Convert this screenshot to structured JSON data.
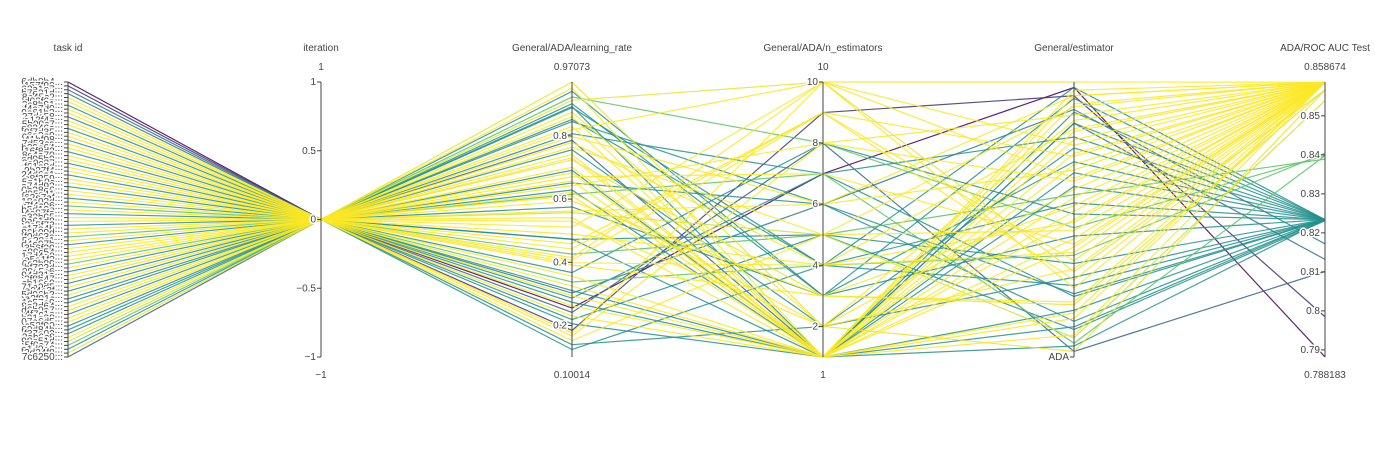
{
  "chart_data": {
    "type": "parallel_coordinates",
    "colorscale": "viridis",
    "colorscale_colors": [
      "#440154",
      "#3b528b",
      "#21918c",
      "#5ec962",
      "#fde725"
    ],
    "color_dimension": "ADA/ROC AUC Test",
    "axes": [
      {
        "key": "task_id",
        "label": "task id",
        "range": [
          0,
          71
        ],
        "ticks": [
          "6db8b4...",
          "157f99...",
          "62a1e7...",
          "b7e31d...",
          "8a45c2...",
          "d02f6e...",
          "3c8b91...",
          "f4a7d0...",
          "9e61b3...",
          "27dc58...",
          "a13f4e...",
          "5b90c7...",
          "e8246a...",
          "0f7d35...",
          "c6a2e9...",
          "41bf08...",
          "7d53ca...",
          "b29e64...",
          "16f8d3...",
          "8c4a70...",
          "ed05b9...",
          "3a9c27...",
          "f61e8d...",
          "9b27f4...",
          "24d6a1...",
          "c8f359...",
          "5e1b0c...",
          "a74d92...",
          "0b38e6...",
          "d95c41...",
          "62e7af...",
          "18a03d...",
          "7f4c96...",
          "b5d12e...",
          "4e87fa...",
          "e32b05...",
          "9a61d8...",
          "2c5f73...",
          "c17e4b...",
          "86b09d...",
          "f0d63a...",
          "5a28c1...",
          "d4e97b...",
          "3b6f20...",
          "a89c54...",
          "17d4e8...",
          "e5a1f3...",
          "6c3b89...",
          "bf702d...",
          "08e5c6...",
          "94d31a...",
          "2f8b47...",
          "cb16e0...",
          "71a9d5...",
          "e04c3f...",
          "5d96b2...",
          "a3f81c...",
          "1c57e9...",
          "8e2d64...",
          "d6b0a7...",
          "4f7c1e...",
          "b91e38...",
          "07a6d5...",
          "c52f90...",
          "69d84b...",
          "f37a02...",
          "2ab6c8...",
          "98e51d...",
          "5f0c74...",
          "e1d9a6...",
          "3d24f8...",
          "7c6250..."
        ]
      },
      {
        "key": "iteration",
        "label": "iteration",
        "range": [
          -1,
          1
        ],
        "range_labels": [
          "−1",
          "1"
        ],
        "ticks": [
          {
            "v": 1,
            "t": "1"
          },
          {
            "v": 0.5,
            "t": "0.5"
          },
          {
            "v": 0,
            "t": "0"
          },
          {
            "v": -0.5,
            "t": "−0.5"
          },
          {
            "v": -1,
            "t": "−1"
          }
        ]
      },
      {
        "key": "learning_rate",
        "label": "General/ADA/learning_rate",
        "range": [
          0.10014,
          0.97073
        ],
        "range_labels": [
          "0.10014",
          "0.97073"
        ],
        "ticks": [
          {
            "v": 0.2,
            "t": "0.2"
          },
          {
            "v": 0.4,
            "t": "0.4"
          },
          {
            "v": 0.6,
            "t": "0.6"
          },
          {
            "v": 0.8,
            "t": "0.8"
          }
        ]
      },
      {
        "key": "n_estimators",
        "label": "General/ADA/n_estimators",
        "range": [
          1,
          10
        ],
        "range_labels": [
          "1",
          "10"
        ],
        "ticks": [
          {
            "v": 2,
            "t": "2"
          },
          {
            "v": 4,
            "t": "4"
          },
          {
            "v": 6,
            "t": "6"
          },
          {
            "v": 8,
            "t": "8"
          },
          {
            "v": 10,
            "t": "10"
          }
        ]
      },
      {
        "key": "estimator",
        "label": "General/estimator",
        "range": [
          0,
          1
        ],
        "range_labels": [
          "",
          ""
        ],
        "ticks": [
          {
            "v": 0,
            "t": "ADA"
          }
        ]
      },
      {
        "key": "roc_auc",
        "label": "ADA/ROC AUC Test",
        "range": [
          0.788183,
          0.858674
        ],
        "range_labels": [
          "0.788183",
          "0.858674"
        ],
        "ticks": [
          {
            "v": 0.79,
            "t": "0.79"
          },
          {
            "v": 0.8,
            "t": "0.8"
          },
          {
            "v": 0.81,
            "t": "0.81"
          },
          {
            "v": 0.82,
            "t": "0.82"
          },
          {
            "v": 0.83,
            "t": "0.83"
          },
          {
            "v": 0.84,
            "t": "0.84"
          },
          {
            "v": 0.85,
            "t": "0.85"
          }
        ]
      }
    ],
    "lines": [
      {
        "task_id": 0,
        "iteration": 0,
        "learning_rate": 0.2411,
        "n_estimators": 8,
        "estimator": 0.02,
        "roc_auc": 0.8101
      },
      {
        "task_id": 1,
        "iteration": 0,
        "learning_rate": 0.9707,
        "n_estimators": 2,
        "estimator": 0.02,
        "roc_auc": 0.8566
      },
      {
        "task_id": 2,
        "iteration": 0,
        "learning_rate": 0.6912,
        "n_estimators": 1,
        "estimator": 0.04,
        "roc_auc": 0.8234
      },
      {
        "task_id": 3,
        "iteration": 0,
        "learning_rate": 0.6154,
        "n_estimators": 7,
        "estimator": 0.05,
        "roc_auc": 0.8398
      },
      {
        "task_id": 4,
        "iteration": 0,
        "learning_rate": 0.5573,
        "n_estimators": 5,
        "estimator": 0.07,
        "roc_auc": 0.8539
      },
      {
        "task_id": 5,
        "iteration": 0,
        "learning_rate": 0.2938,
        "n_estimators": 1,
        "estimator": 0.08,
        "roc_auc": 0.8586
      },
      {
        "task_id": 6,
        "iteration": 0,
        "learning_rate": 0.4725,
        "n_estimators": 5,
        "estimator": 0.1,
        "roc_auc": 0.8231
      },
      {
        "task_id": 7,
        "iteration": 0,
        "learning_rate": 0.6289,
        "n_estimators": 1,
        "estimator": 0.11,
        "roc_auc": 0.8234
      },
      {
        "task_id": 8,
        "iteration": 0,
        "learning_rate": 0.8456,
        "n_estimators": 6,
        "estimator": 0.13,
        "roc_auc": 0.8234
      },
      {
        "task_id": 9,
        "iteration": 0,
        "learning_rate": 0.6102,
        "n_estimators": 1,
        "estimator": 0.14,
        "roc_auc": 0.8586
      },
      {
        "task_id": 10,
        "iteration": 0,
        "learning_rate": 0.9512,
        "n_estimators": 1,
        "estimator": 0.16,
        "roc_auc": 0.8586
      },
      {
        "task_id": 11,
        "iteration": 0,
        "learning_rate": 0.2735,
        "n_estimators": 1,
        "estimator": 0.17,
        "roc_auc": 0.8234
      },
      {
        "task_id": 12,
        "iteration": 0,
        "learning_rate": 0.7243,
        "n_estimators": 3,
        "estimator": 0.19,
        "roc_auc": 0.8567
      },
      {
        "task_id": 13,
        "iteration": 0,
        "learning_rate": 0.3914,
        "n_estimators": 3,
        "estimator": 0.2,
        "roc_auc": 0.8586
      },
      {
        "task_id": 14,
        "iteration": 0,
        "learning_rate": 0.8071,
        "n_estimators": 7,
        "estimator": 0.22,
        "roc_auc": 0.8234
      },
      {
        "task_id": 15,
        "iteration": 0,
        "learning_rate": 0.6511,
        "n_estimators": 6,
        "estimator": 0.23,
        "roc_auc": 0.8234
      },
      {
        "task_id": 16,
        "iteration": 0,
        "learning_rate": 0.1764,
        "n_estimators": 10,
        "estimator": 0.25,
        "roc_auc": 0.8586
      },
      {
        "task_id": 17,
        "iteration": 0,
        "learning_rate": 0.8897,
        "n_estimators": 4,
        "estimator": 0.26,
        "roc_auc": 0.8234
      },
      {
        "task_id": 18,
        "iteration": 0,
        "learning_rate": 0.4423,
        "n_estimators": 9,
        "estimator": 0.28,
        "roc_auc": 0.8586
      },
      {
        "task_id": 19,
        "iteration": 0,
        "learning_rate": 0.7562,
        "n_estimators": 2,
        "estimator": 0.29,
        "roc_auc": 0.8234
      },
      {
        "task_id": 20,
        "iteration": 0,
        "learning_rate": 0.9128,
        "n_estimators": 10,
        "estimator": 0.31,
        "roc_auc": 0.8566
      },
      {
        "task_id": 21,
        "iteration": 0,
        "learning_rate": 0.5297,
        "n_estimators": 2,
        "estimator": 0.32,
        "roc_auc": 0.8586
      },
      {
        "task_id": 22,
        "iteration": 0,
        "learning_rate": 0.2186,
        "n_estimators": 5,
        "estimator": 0.34,
        "roc_auc": 0.8234
      },
      {
        "task_id": 23,
        "iteration": 0,
        "learning_rate": 0.4069,
        "n_estimators": 9,
        "estimator": 0.35,
        "roc_auc": 0.8586
      },
      {
        "task_id": 24,
        "iteration": 0,
        "learning_rate": 0.3377,
        "n_estimators": 4,
        "estimator": 0.37,
        "roc_auc": 0.8404
      },
      {
        "task_id": 25,
        "iteration": 0,
        "learning_rate": 0.7794,
        "n_estimators": 4,
        "estimator": 0.38,
        "roc_auc": 0.8586
      },
      {
        "task_id": 26,
        "iteration": 0,
        "learning_rate": 0.8612,
        "n_estimators": 1,
        "estimator": 0.4,
        "roc_auc": 0.8586
      },
      {
        "task_id": 27,
        "iteration": 0,
        "learning_rate": 0.6708,
        "n_estimators": 7,
        "estimator": 0.41,
        "roc_auc": 0.8586
      },
      {
        "task_id": 28,
        "iteration": 0,
        "learning_rate": 0.2622,
        "n_estimators": 1,
        "estimator": 0.43,
        "roc_auc": 0.8586
      },
      {
        "task_id": 29,
        "iteration": 0,
        "learning_rate": 0.5751,
        "n_estimators": 3,
        "estimator": 0.44,
        "roc_auc": 0.8234
      },
      {
        "task_id": 30,
        "iteration": 0,
        "learning_rate": 0.1519,
        "n_estimators": 5,
        "estimator": 0.46,
        "roc_auc": 0.8586
      },
      {
        "task_id": 31,
        "iteration": 0,
        "learning_rate": 0.9235,
        "n_estimators": 8,
        "estimator": 0.47,
        "roc_auc": 0.8398
      },
      {
        "task_id": 32,
        "iteration": 0,
        "learning_rate": 0.4891,
        "n_estimators": 4,
        "estimator": 0.49,
        "roc_auc": 0.8586
      },
      {
        "task_id": 33,
        "iteration": 0,
        "learning_rate": 0.7008,
        "n_estimators": 1,
        "estimator": 0.5,
        "roc_auc": 0.8586
      },
      {
        "task_id": 34,
        "iteration": 0,
        "learning_rate": 0.3672,
        "n_estimators": 8,
        "estimator": 0.52,
        "roc_auc": 0.8234
      },
      {
        "task_id": 35,
        "iteration": 0,
        "learning_rate": 0.8301,
        "n_estimators": 1,
        "estimator": 0.53,
        "roc_auc": 0.8586
      },
      {
        "task_id": 36,
        "iteration": 0,
        "learning_rate": 0.5936,
        "n_estimators": 3,
        "estimator": 0.55,
        "roc_auc": 0.8586
      },
      {
        "task_id": 37,
        "iteration": 0,
        "learning_rate": 0.1238,
        "n_estimators": 4,
        "estimator": 0.56,
        "roc_auc": 0.8234
      },
      {
        "task_id": 38,
        "iteration": 0,
        "learning_rate": 0.7417,
        "n_estimators": 1,
        "estimator": 0.58,
        "roc_auc": 0.8586
      },
      {
        "task_id": 39,
        "iteration": 0,
        "learning_rate": 0.4258,
        "n_estimators": 5,
        "estimator": 0.59,
        "roc_auc": 0.8389
      },
      {
        "task_id": 40,
        "iteration": 0,
        "learning_rate": 0.8749,
        "n_estimators": 2,
        "estimator": 0.61,
        "roc_auc": 0.8586
      },
      {
        "task_id": 41,
        "iteration": 0,
        "learning_rate": 0.3106,
        "n_estimators": 1,
        "estimator": 0.62,
        "roc_auc": 0.8234
      },
      {
        "task_id": 42,
        "iteration": 0,
        "learning_rate": 0.6427,
        "n_estimators": 8,
        "estimator": 0.64,
        "roc_auc": 0.8586
      },
      {
        "task_id": 43,
        "iteration": 0,
        "learning_rate": 0.5112,
        "n_estimators": 10,
        "estimator": 0.65,
        "roc_auc": 0.8586
      },
      {
        "task_id": 44,
        "iteration": 0,
        "learning_rate": 0.2053,
        "n_estimators": 1,
        "estimator": 0.67,
        "roc_auc": 0.8234
      },
      {
        "task_id": 45,
        "iteration": 0,
        "learning_rate": 0.7981,
        "n_estimators": 6,
        "estimator": 0.68,
        "roc_auc": 0.8586
      },
      {
        "task_id": 46,
        "iteration": 0,
        "learning_rate": 0.3562,
        "n_estimators": 1,
        "estimator": 0.7,
        "roc_auc": 0.8586
      },
      {
        "task_id": 47,
        "iteration": 0,
        "learning_rate": 0.9413,
        "n_estimators": 3,
        "estimator": 0.71,
        "roc_auc": 0.8234
      },
      {
        "task_id": 48,
        "iteration": 0,
        "learning_rate": 0.4587,
        "n_estimators": 9,
        "estimator": 0.73,
        "roc_auc": 0.8586
      },
      {
        "task_id": 49,
        "iteration": 0,
        "learning_rate": 0.6835,
        "n_estimators": 1,
        "estimator": 0.74,
        "roc_auc": 0.8586
      },
      {
        "task_id": 50,
        "iteration": 0,
        "learning_rate": 0.1391,
        "n_estimators": 2,
        "estimator": 0.76,
        "roc_auc": 0.8234
      },
      {
        "task_id": 51,
        "iteration": 0,
        "learning_rate": 0.8198,
        "n_estimators": 10,
        "estimator": 0.77,
        "roc_auc": 0.8586
      },
      {
        "task_id": 52,
        "iteration": 0,
        "learning_rate": 0.5409,
        "n_estimators": 1,
        "estimator": 0.79,
        "roc_auc": 0.8586
      },
      {
        "task_id": 53,
        "iteration": 0,
        "learning_rate": 0.2864,
        "n_estimators": 7,
        "estimator": 0.8,
        "roc_auc": 0.8234
      },
      {
        "task_id": 54,
        "iteration": 0,
        "learning_rate": 0.7306,
        "n_estimators": 1,
        "estimator": 0.82,
        "roc_auc": 0.8586
      },
      {
        "task_id": 55,
        "iteration": 0,
        "learning_rate": 0.3983,
        "n_estimators": 4,
        "estimator": 0.83,
        "roc_auc": 0.8586
      },
      {
        "task_id": 56,
        "iteration": 0,
        "learning_rate": 0.8934,
        "n_estimators": 1,
        "estimator": 0.85,
        "roc_auc": 0.8234
      },
      {
        "task_id": 57,
        "iteration": 0,
        "learning_rate": 0.6213,
        "n_estimators": 2,
        "estimator": 0.86,
        "roc_auc": 0.8586
      },
      {
        "task_id": 58,
        "iteration": 0,
        "learning_rate": 0.1667,
        "n_estimators": 8,
        "estimator": 0.88,
        "roc_auc": 0.8586
      },
      {
        "task_id": 59,
        "iteration": 0,
        "learning_rate": 0.4736,
        "n_estimators": 1,
        "estimator": 0.89,
        "roc_auc": 0.8234
      },
      {
        "task_id": 60,
        "iteration": 0,
        "learning_rate": 0.7645,
        "n_estimators": 5,
        "estimator": 0.91,
        "roc_auc": 0.8586
      },
      {
        "task_id": 61,
        "iteration": 0,
        "learning_rate": 0.3248,
        "n_estimators": 1,
        "estimator": 0.92,
        "roc_auc": 0.8586
      },
      {
        "task_id": 62,
        "iteration": 0,
        "learning_rate": 0.9021,
        "n_estimators": 3,
        "estimator": 0.94,
        "roc_auc": 0.8234
      },
      {
        "task_id": 63,
        "iteration": 0,
        "learning_rate": 0.5624,
        "n_estimators": 6,
        "estimator": 0.95,
        "roc_auc": 0.8586
      },
      {
        "task_id": 64,
        "iteration": 0,
        "learning_rate": 0.2297,
        "n_estimators": 1,
        "estimator": 0.97,
        "roc_auc": 0.8586
      },
      {
        "task_id": 65,
        "iteration": 0,
        "learning_rate": 0.8523,
        "n_estimators": 4,
        "estimator": 0.98,
        "roc_auc": 0.8234
      },
      {
        "task_id": 66,
        "iteration": 0,
        "learning_rate": 0.4148,
        "n_estimators": 10,
        "estimator": 1.0,
        "roc_auc": 0.8586
      },
      {
        "task_id": 67,
        "iteration": 0,
        "learning_rate": 0.6574,
        "n_estimators": 1,
        "estimator": 0.95,
        "roc_auc": 0.8586
      },
      {
        "task_id": 68,
        "iteration": 0,
        "learning_rate": 0.3026,
        "n_estimators": 6,
        "estimator": 0.9,
        "roc_auc": 0.8172
      },
      {
        "task_id": 69,
        "iteration": 0,
        "learning_rate": 0.7863,
        "n_estimators": 1,
        "estimator": 0.85,
        "roc_auc": 0.8132
      },
      {
        "task_id": 70,
        "iteration": 0,
        "learning_rate": 0.1843,
        "n_estimators": 9,
        "estimator": 0.95,
        "roc_auc": 0.7985
      },
      {
        "task_id": 71,
        "iteration": 0,
        "learning_rate": 0.2552,
        "n_estimators": 7,
        "estimator": 0.98,
        "roc_auc": 0.7882
      }
    ]
  }
}
